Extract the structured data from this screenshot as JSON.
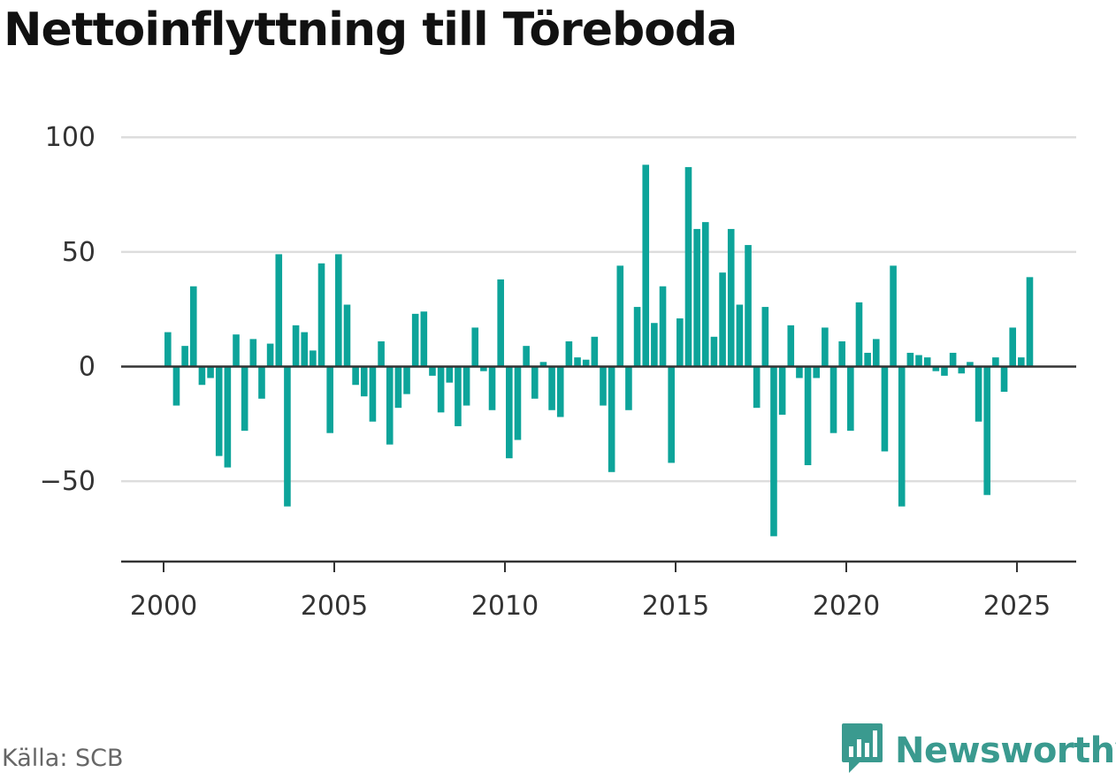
{
  "title": "Nettoinflyttning till Töreboda",
  "source": "Källa: SCB",
  "brand": {
    "name": "Newsworthy",
    "icon": "newsworthy-logo-icon",
    "color": "#3a9a8f"
  },
  "colors": {
    "bar": "#0da49a",
    "grid": "#dddddd",
    "zero": "#333333",
    "axis": "#333333"
  },
  "chart_data": {
    "type": "bar",
    "title": "Nettoinflyttning till Töreboda",
    "xlabel": "",
    "ylabel": "",
    "x_ticks": [
      2000,
      2005,
      2010,
      2015,
      2020,
      2025
    ],
    "y_ticks": [
      100,
      50,
      0,
      -50
    ],
    "y_tick_labels": [
      "100",
      "50",
      "0",
      "−50"
    ],
    "ylim": [
      -86,
      100
    ],
    "xlim": [
      1999.5,
      2026.4
    ],
    "grid": true,
    "legend": "none",
    "series": [
      {
        "x": [
          2000.125,
          2000.375,
          2000.625,
          2000.875,
          2001.125,
          2001.375,
          2001.625,
          2001.875,
          2002.125,
          2002.375,
          2002.625,
          2002.875,
          2003.125,
          2003.375,
          2003.625,
          2003.875,
          2004.125,
          2004.375,
          2004.625,
          2004.875,
          2005.125,
          2005.375,
          2005.625,
          2005.875,
          2006.125,
          2006.375,
          2006.625,
          2006.875,
          2007.125,
          2007.375,
          2007.625,
          2007.875,
          2008.125,
          2008.375,
          2008.625,
          2008.875,
          2009.125,
          2009.375,
          2009.625,
          2009.875,
          2010.125,
          2010.375,
          2010.625,
          2010.875,
          2011.125,
          2011.375,
          2011.625,
          2011.875,
          2012.125,
          2012.375,
          2012.625,
          2012.875,
          2013.125,
          2013.375,
          2013.625,
          2013.875,
          2014.125,
          2014.375,
          2014.625,
          2014.875,
          2015.125,
          2015.375,
          2015.625,
          2015.875,
          2016.125,
          2016.375,
          2016.625,
          2016.875,
          2017.125,
          2017.375,
          2017.625,
          2017.875,
          2018.125,
          2018.375,
          2018.625,
          2018.875,
          2019.125,
          2019.375,
          2019.625,
          2019.875,
          2020.125,
          2020.375,
          2020.625,
          2020.875,
          2021.125,
          2021.375,
          2021.625,
          2021.875,
          2022.125,
          2022.375,
          2022.625,
          2022.875,
          2023.125,
          2023.375,
          2023.625,
          2023.875,
          2024.125,
          2024.375,
          2024.625,
          2024.875,
          2025.125,
          2025.375
        ],
        "values": [
          15,
          -17,
          9,
          35,
          -8,
          -5,
          -39,
          -44,
          14,
          -28,
          12,
          -14,
          10,
          49,
          -61,
          18,
          15,
          7,
          45,
          -29,
          49,
          27,
          -8,
          -13,
          -24,
          11,
          -34,
          -18,
          -12,
          23,
          24,
          -4,
          -20,
          -7,
          -26,
          -17,
          17,
          -2,
          -19,
          38,
          -40,
          -32,
          9,
          -14,
          2,
          -19,
          -22,
          11,
          4,
          3,
          13,
          -17,
          -46,
          44,
          -19,
          26,
          88,
          19,
          35,
          -42,
          21,
          87,
          60,
          63,
          13,
          41,
          60,
          27,
          53,
          -18,
          26,
          -74,
          -21,
          18,
          -5,
          -43,
          -5,
          17,
          -29,
          11,
          -28,
          28,
          6,
          12,
          -37,
          44,
          -61,
          6,
          5,
          4,
          -2,
          -4,
          6,
          -3,
          2,
          -24,
          -56,
          4,
          -11,
          17,
          4,
          39
        ]
      }
    ]
  }
}
